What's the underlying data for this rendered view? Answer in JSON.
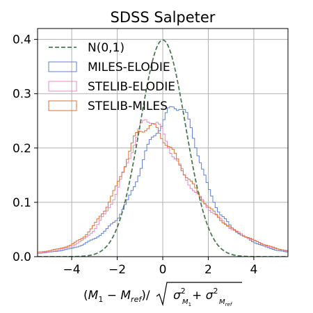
{
  "chart_data": {
    "type": "line",
    "title": "SDSS Salpeter",
    "xlabel_parts": {
      "open": "(",
      "m1": "M",
      "m1_sub": "1",
      "minus": " − ",
      "mref": "M",
      "mref_sub": "ref",
      "close": ")/",
      "sigma1": "σ",
      "sigma1_sup": "2",
      "sigma1_sub": "M",
      "sigma1_subsub": "1",
      "plus": " + ",
      "sigma2": "σ",
      "sigma2_sup": "2",
      "sigma2_sub": "M",
      "sigma2_subsub": "ref"
    },
    "xlim": [
      -5.5,
      5.5
    ],
    "ylim": [
      0,
      0.42
    ],
    "xticks": [
      -4,
      -2,
      0,
      2,
      4
    ],
    "xtick_labels": [
      "−4",
      "−2",
      "0",
      "2",
      "4"
    ],
    "yticks": [
      0.0,
      0.1,
      0.2,
      0.3,
      0.4
    ],
    "ytick_labels": [
      "0.0",
      "0.1",
      "0.2",
      "0.3",
      "0.4"
    ],
    "grid": true,
    "legend_position": "upper-left",
    "reference_curve": {
      "name": "N(0,1)",
      "color": "#4a7a50",
      "style": "dashed",
      "mu": 0,
      "sigma": 1
    },
    "series": [
      {
        "name": "MILES-ELODIE",
        "color": "#5b7fd6",
        "style": "step",
        "points": [
          [
            -5.5,
            0.006
          ],
          [
            -5,
            0.008
          ],
          [
            -4.5,
            0.011
          ],
          [
            -4,
            0.015
          ],
          [
            -3.5,
            0.022
          ],
          [
            -3,
            0.033
          ],
          [
            -2.5,
            0.048
          ],
          [
            -2,
            0.07
          ],
          [
            -1.5,
            0.105
          ],
          [
            -1.25,
            0.13
          ],
          [
            -1,
            0.16
          ],
          [
            -0.75,
            0.19
          ],
          [
            -0.5,
            0.215
          ],
          [
            -0.25,
            0.235
          ],
          [
            0,
            0.245
          ],
          [
            0.25,
            0.265
          ],
          [
            0.5,
            0.28
          ],
          [
            0.75,
            0.278
          ],
          [
            1,
            0.262
          ],
          [
            1.25,
            0.235
          ],
          [
            1.5,
            0.2
          ],
          [
            1.75,
            0.16
          ],
          [
            2,
            0.125
          ],
          [
            2.5,
            0.08
          ],
          [
            3,
            0.055
          ],
          [
            3.5,
            0.038
          ],
          [
            4,
            0.027
          ],
          [
            4.5,
            0.018
          ],
          [
            5,
            0.012
          ],
          [
            5.5,
            0.008
          ]
        ]
      },
      {
        "name": "STELIB-ELODIE",
        "color": "#e88ac0",
        "style": "step",
        "points": [
          [
            -5.5,
            0.006
          ],
          [
            -5,
            0.009
          ],
          [
            -4.5,
            0.013
          ],
          [
            -4,
            0.019
          ],
          [
            -3.5,
            0.03
          ],
          [
            -3,
            0.05
          ],
          [
            -2.5,
            0.08
          ],
          [
            -2,
            0.12
          ],
          [
            -1.75,
            0.15
          ],
          [
            -1.5,
            0.18
          ],
          [
            -1.25,
            0.21
          ],
          [
            -1,
            0.235
          ],
          [
            -0.75,
            0.25
          ],
          [
            -0.5,
            0.255
          ],
          [
            -0.25,
            0.245
          ],
          [
            0,
            0.225
          ],
          [
            0.25,
            0.205
          ],
          [
            0.5,
            0.185
          ],
          [
            0.75,
            0.165
          ],
          [
            1,
            0.145
          ],
          [
            1.5,
            0.115
          ],
          [
            2,
            0.09
          ],
          [
            2.5,
            0.07
          ],
          [
            3,
            0.052
          ],
          [
            3.5,
            0.04
          ],
          [
            4,
            0.03
          ],
          [
            4.5,
            0.021
          ],
          [
            5,
            0.014
          ],
          [
            5.5,
            0.01
          ]
        ]
      },
      {
        "name": "STELIB-MILES",
        "color": "#e07030",
        "style": "step",
        "points": [
          [
            -5.5,
            0.008
          ],
          [
            -5,
            0.011
          ],
          [
            -4.5,
            0.015
          ],
          [
            -4,
            0.022
          ],
          [
            -3.5,
            0.035
          ],
          [
            -3,
            0.058
          ],
          [
            -2.5,
            0.09
          ],
          [
            -2,
            0.13
          ],
          [
            -1.75,
            0.16
          ],
          [
            -1.5,
            0.19
          ],
          [
            -1.25,
            0.215
          ],
          [
            -1,
            0.232
          ],
          [
            -0.75,
            0.24
          ],
          [
            -0.5,
            0.24
          ],
          [
            -0.25,
            0.232
          ],
          [
            0,
            0.22
          ],
          [
            0.25,
            0.205
          ],
          [
            0.5,
            0.188
          ],
          [
            0.75,
            0.17
          ],
          [
            1,
            0.152
          ],
          [
            1.5,
            0.12
          ],
          [
            2,
            0.092
          ],
          [
            2.5,
            0.07
          ],
          [
            3,
            0.052
          ],
          [
            3.5,
            0.04
          ],
          [
            4,
            0.03
          ],
          [
            4.5,
            0.022
          ],
          [
            5,
            0.015
          ],
          [
            5.5,
            0.011
          ]
        ]
      }
    ]
  }
}
